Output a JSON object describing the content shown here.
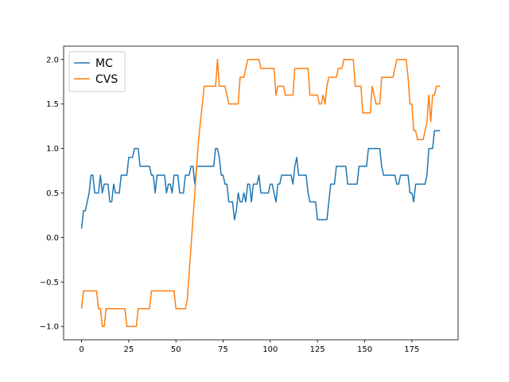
{
  "chart_data": {
    "type": "line",
    "x": [
      0,
      1,
      2,
      3,
      4,
      5,
      6,
      7,
      8,
      9,
      10,
      11,
      12,
      13,
      14,
      15,
      16,
      17,
      18,
      19,
      20,
      21,
      22,
      23,
      24,
      25,
      26,
      27,
      28,
      29,
      30,
      31,
      32,
      33,
      34,
      35,
      36,
      37,
      38,
      39,
      40,
      41,
      42,
      43,
      44,
      45,
      46,
      47,
      48,
      49,
      50,
      51,
      52,
      53,
      54,
      55,
      56,
      57,
      58,
      59,
      60,
      61,
      62,
      63,
      64,
      65,
      66,
      67,
      68,
      69,
      70,
      71,
      72,
      73,
      74,
      75,
      76,
      77,
      78,
      79,
      80,
      81,
      82,
      83,
      84,
      85,
      86,
      87,
      88,
      89,
      90,
      91,
      92,
      93,
      94,
      95,
      96,
      97,
      98,
      99,
      100,
      101,
      102,
      103,
      104,
      105,
      106,
      107,
      108,
      109,
      110,
      111,
      112,
      113,
      114,
      115,
      116,
      117,
      118,
      119,
      120,
      121,
      122,
      123,
      124,
      125,
      126,
      127,
      128,
      129,
      130,
      131,
      132,
      133,
      134,
      135,
      136,
      137,
      138,
      139,
      140,
      141,
      142,
      143,
      144,
      145,
      146,
      147,
      148,
      149,
      150,
      151,
      152,
      153,
      154,
      155,
      156,
      157,
      158,
      159,
      160,
      161,
      162,
      163,
      164,
      165,
      166,
      167,
      168,
      169,
      170,
      171,
      172,
      173,
      174,
      175,
      176,
      177,
      178,
      179,
      180,
      181,
      182,
      183,
      184,
      185,
      186,
      187,
      188,
      189,
      190
    ],
    "series": [
      {
        "name": "MC",
        "color": "#1f77b4",
        "values": [
          0.1,
          0.3,
          0.3,
          0.4,
          0.5,
          0.7,
          0.7,
          0.5,
          0.5,
          0.5,
          0.7,
          0.5,
          0.6,
          0.6,
          0.6,
          0.4,
          0.4,
          0.6,
          0.5,
          0.5,
          0.5,
          0.7,
          0.7,
          0.7,
          0.7,
          0.9,
          0.9,
          0.9,
          1.0,
          1.0,
          1.0,
          0.8,
          0.8,
          0.8,
          0.8,
          0.8,
          0.8,
          0.7,
          0.7,
          0.5,
          0.7,
          0.7,
          0.7,
          0.7,
          0.7,
          0.5,
          0.6,
          0.6,
          0.5,
          0.7,
          0.7,
          0.7,
          0.5,
          0.5,
          0.5,
          0.7,
          0.7,
          0.7,
          0.8,
          0.8,
          0.6,
          0.8,
          0.8,
          0.8,
          0.8,
          0.8,
          0.8,
          0.8,
          0.8,
          0.8,
          0.8,
          1.0,
          1.0,
          0.9,
          0.7,
          0.7,
          0.6,
          0.6,
          0.4,
          0.4,
          0.4,
          0.2,
          0.3,
          0.5,
          0.4,
          0.4,
          0.5,
          0.4,
          0.6,
          0.6,
          0.4,
          0.6,
          0.6,
          0.6,
          0.7,
          0.5,
          0.5,
          0.5,
          0.5,
          0.5,
          0.6,
          0.6,
          0.5,
          0.4,
          0.6,
          0.6,
          0.7,
          0.7,
          0.7,
          0.7,
          0.7,
          0.7,
          0.6,
          0.8,
          0.9,
          0.7,
          0.7,
          0.7,
          0.7,
          0.7,
          0.5,
          0.4,
          0.4,
          0.4,
          0.4,
          0.2,
          0.2,
          0.2,
          0.2,
          0.2,
          0.2,
          0.4,
          0.6,
          0.6,
          0.6,
          0.8,
          0.8,
          0.8,
          0.8,
          0.8,
          0.8,
          0.6,
          0.6,
          0.6,
          0.6,
          0.6,
          0.6,
          0.8,
          0.8,
          0.8,
          0.8,
          0.8,
          1.0,
          1.0,
          1.0,
          1.0,
          1.0,
          1.0,
          1.0,
          0.8,
          0.7,
          0.7,
          0.7,
          0.7,
          0.7,
          0.7,
          0.7,
          0.6,
          0.6,
          0.7,
          0.7,
          0.7,
          0.7,
          0.7,
          0.5,
          0.5,
          0.4,
          0.6,
          0.6,
          0.6,
          0.6,
          0.6,
          0.6,
          0.7,
          1.0,
          1.0,
          1.0,
          1.2,
          1.2,
          1.2,
          1.2
        ]
      },
      {
        "name": "CVS",
        "color": "#ff7f0e",
        "values": [
          -0.8,
          -0.6,
          -0.6,
          -0.6,
          -0.6,
          -0.6,
          -0.6,
          -0.6,
          -0.6,
          -0.8,
          -0.8,
          -1.0,
          -1.0,
          -0.8,
          -0.8,
          -0.8,
          -0.8,
          -0.8,
          -0.8,
          -0.8,
          -0.8,
          -0.8,
          -0.8,
          -0.8,
          -1.0,
          -1.0,
          -1.0,
          -1.0,
          -1.0,
          -1.0,
          -0.8,
          -0.8,
          -0.8,
          -0.8,
          -0.8,
          -0.8,
          -0.8,
          -0.6,
          -0.6,
          -0.6,
          -0.6,
          -0.6,
          -0.6,
          -0.6,
          -0.6,
          -0.6,
          -0.6,
          -0.6,
          -0.6,
          -0.6,
          -0.8,
          -0.8,
          -0.8,
          -0.8,
          -0.8,
          -0.8,
          -0.7,
          -0.4,
          -0.1,
          0.2,
          0.5,
          0.8,
          1.1,
          1.3,
          1.5,
          1.7,
          1.7,
          1.7,
          1.7,
          1.7,
          1.7,
          1.7,
          2.0,
          1.7,
          1.7,
          1.7,
          1.7,
          1.6,
          1.5,
          1.5,
          1.5,
          1.5,
          1.5,
          1.5,
          1.8,
          1.8,
          1.8,
          1.9,
          2.0,
          2.0,
          2.0,
          2.0,
          2.0,
          2.0,
          2.0,
          1.9,
          1.9,
          1.9,
          1.9,
          1.9,
          1.9,
          1.9,
          1.9,
          1.6,
          1.7,
          1.7,
          1.7,
          1.7,
          1.6,
          1.6,
          1.6,
          1.6,
          1.6,
          1.9,
          1.9,
          1.9,
          1.9,
          1.9,
          1.9,
          1.9,
          1.9,
          1.6,
          1.6,
          1.6,
          1.6,
          1.6,
          1.5,
          1.5,
          1.6,
          1.5,
          1.7,
          1.8,
          1.8,
          1.8,
          1.8,
          1.8,
          1.9,
          1.9,
          1.9,
          2.0,
          2.0,
          2.0,
          2.0,
          2.0,
          2.0,
          1.7,
          1.7,
          1.7,
          1.7,
          1.4,
          1.4,
          1.4,
          1.4,
          1.4,
          1.7,
          1.6,
          1.5,
          1.5,
          1.5,
          1.8,
          1.8,
          1.8,
          1.8,
          1.8,
          1.8,
          1.8,
          1.9,
          2.0,
          2.0,
          2.0,
          2.0,
          2.0,
          2.0,
          1.8,
          1.5,
          1.5,
          1.2,
          1.2,
          1.1,
          1.1,
          1.1,
          1.1,
          1.2,
          1.3,
          1.6,
          1.3,
          1.6,
          1.6,
          1.7,
          1.7,
          1.7
        ]
      }
    ],
    "xlim": [
      -9.5,
      199.5
    ],
    "xticks": [
      0,
      25,
      50,
      75,
      100,
      125,
      150,
      175
    ],
    "ylim": [
      -1.15,
      2.15
    ],
    "yticks": [
      {
        "value": -1.0,
        "label": "−1.0"
      },
      {
        "value": -0.5,
        "label": "−0.5"
      },
      {
        "value": 0.0,
        "label": "0.0"
      },
      {
        "value": 0.5,
        "label": "0.5"
      },
      {
        "value": 1.0,
        "label": "1.0"
      },
      {
        "value": 1.5,
        "label": "1.5"
      },
      {
        "value": 2.0,
        "label": "2.0"
      }
    ],
    "legend": "upper left"
  }
}
